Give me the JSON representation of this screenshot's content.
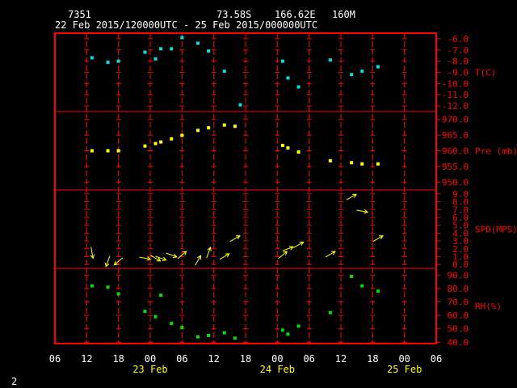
{
  "header": {
    "station_id": "7351",
    "lat": "73.58S",
    "lon": "166.62E",
    "elevation": "160M",
    "period": "22 Feb 2015/120000UTC - 25 Feb 2015/000000UTC"
  },
  "footer": {
    "page_number": "2"
  },
  "colors": {
    "frame": "#ff0000",
    "temperature": "#00e0e0",
    "pressure": "#ffff00",
    "wind": "#ffff00",
    "humidity": "#00e000",
    "text": "#ffffff"
  },
  "chart_data": {
    "type": "scatter",
    "x_tick_labels": [
      "06",
      "12",
      "18",
      "00",
      "06",
      "12",
      "18",
      "00",
      "06",
      "12",
      "18",
      "00",
      "06"
    ],
    "x_date_labels": [
      {
        "label": "23 Feb",
        "at_hour": 24
      },
      {
        "label": "24 Feb",
        "at_hour": 48
      },
      {
        "label": "25 Feb",
        "at_hour": 72
      }
    ],
    "x_range_hours": [
      6,
      78
    ],
    "x_hours_origin": "22 Feb 00UTC",
    "panels": [
      {
        "key": "temperature",
        "label": "T(C)",
        "ylim": [
          -12.5,
          -5.5
        ],
        "ticks": [
          "-6.0",
          "-7.0",
          "-8.0",
          "-9.0",
          "-10.0",
          "-11.0",
          "-12.0"
        ],
        "tick_values": [
          -6,
          -7,
          -8,
          -9,
          -10,
          -11,
          -12
        ],
        "points": [
          {
            "x": 13,
            "y": -7.7
          },
          {
            "x": 16,
            "y": -8.1
          },
          {
            "x": 18,
            "y": -8.0
          },
          {
            "x": 23,
            "y": -7.2
          },
          {
            "x": 25,
            "y": -7.8
          },
          {
            "x": 26,
            "y": -6.9
          },
          {
            "x": 28,
            "y": -6.9
          },
          {
            "x": 30,
            "y": -5.9
          },
          {
            "x": 33,
            "y": -6.4
          },
          {
            "x": 35,
            "y": -7.1
          },
          {
            "x": 38,
            "y": -8.9
          },
          {
            "x": 41,
            "y": -11.9
          },
          {
            "x": 49,
            "y": -8.0
          },
          {
            "x": 50,
            "y": -9.5
          },
          {
            "x": 52,
            "y": -10.3
          },
          {
            "x": 58,
            "y": -7.9
          },
          {
            "x": 62,
            "y": -9.2
          },
          {
            "x": 64,
            "y": -8.9
          },
          {
            "x": 67,
            "y": -8.5
          }
        ]
      },
      {
        "key": "pressure",
        "label": "Pre (mb)",
        "ylim": [
          947.5,
          972.5
        ],
        "ticks": [
          "970.0",
          "965.0",
          "960.0",
          "955.0",
          "950.0"
        ],
        "tick_values": [
          970,
          965,
          960,
          955,
          950
        ],
        "points": [
          {
            "x": 13,
            "y": 960.0
          },
          {
            "x": 16,
            "y": 960.0
          },
          {
            "x": 18,
            "y": 960.0
          },
          {
            "x": 23,
            "y": 961.5
          },
          {
            "x": 25,
            "y": 962.3
          },
          {
            "x": 26,
            "y": 962.8
          },
          {
            "x": 28,
            "y": 963.8
          },
          {
            "x": 30,
            "y": 964.9
          },
          {
            "x": 33,
            "y": 966.5
          },
          {
            "x": 35,
            "y": 967.3
          },
          {
            "x": 38,
            "y": 968.2
          },
          {
            "x": 40,
            "y": 967.8
          },
          {
            "x": 49,
            "y": 961.7
          },
          {
            "x": 50,
            "y": 960.9
          },
          {
            "x": 52,
            "y": 959.6
          },
          {
            "x": 58,
            "y": 956.8
          },
          {
            "x": 62,
            "y": 956.2
          },
          {
            "x": 64,
            "y": 955.8
          },
          {
            "x": 67,
            "y": 955.8
          }
        ]
      },
      {
        "key": "wind",
        "label": "SPD(MPS)",
        "ylim": [
          -0.5,
          9.5
        ],
        "ticks": [
          "9.0",
          "8.0",
          "7.0",
          "6.0",
          "5.0",
          "4.0",
          "3.0",
          "2.0",
          "1.0",
          "0.0"
        ],
        "tick_values": [
          9,
          8,
          7,
          6,
          5,
          4,
          3,
          2,
          1,
          0
        ],
        "points": [
          {
            "x": 13,
            "y": 1.5,
            "dir_deg": 350
          },
          {
            "x": 16,
            "y": 0.4,
            "dir_deg": 20
          },
          {
            "x": 18,
            "y": 0.4,
            "dir_deg": 50
          },
          {
            "x": 23,
            "y": 0.8,
            "dir_deg": 280
          },
          {
            "x": 25,
            "y": 0.8,
            "dir_deg": 300
          },
          {
            "x": 26,
            "y": 0.8,
            "dir_deg": 290
          },
          {
            "x": 28,
            "y": 1.2,
            "dir_deg": 290
          },
          {
            "x": 30,
            "y": 1.2,
            "dir_deg": 230
          },
          {
            "x": 33,
            "y": 0.5,
            "dir_deg": 210
          },
          {
            "x": 35,
            "y": 1.5,
            "dir_deg": 200
          },
          {
            "x": 38,
            "y": 1.0,
            "dir_deg": 240
          },
          {
            "x": 40,
            "y": 3.3,
            "dir_deg": 240
          },
          {
            "x": 49,
            "y": 1.2,
            "dir_deg": 230
          },
          {
            "x": 50,
            "y": 2.0,
            "dir_deg": 250
          },
          {
            "x": 52,
            "y": 2.5,
            "dir_deg": 240
          },
          {
            "x": 58,
            "y": 1.3,
            "dir_deg": 240
          },
          {
            "x": 62,
            "y": 8.6,
            "dir_deg": 240
          },
          {
            "x": 64,
            "y": 6.8,
            "dir_deg": 280
          },
          {
            "x": 67,
            "y": 3.3,
            "dir_deg": 240
          }
        ]
      },
      {
        "key": "humidity",
        "label": "RH(%)",
        "ylim": [
          39.0,
          95.0
        ],
        "ticks": [
          "90.0",
          "80.0",
          "70.0",
          "60.0",
          "50.0",
          "40.0"
        ],
        "tick_values": [
          90,
          80,
          70,
          60,
          50,
          40
        ],
        "points": [
          {
            "x": 13,
            "y": 82
          },
          {
            "x": 16,
            "y": 81
          },
          {
            "x": 18,
            "y": 76
          },
          {
            "x": 23,
            "y": 63
          },
          {
            "x": 25,
            "y": 59
          },
          {
            "x": 26,
            "y": 75
          },
          {
            "x": 28,
            "y": 54
          },
          {
            "x": 30,
            "y": 51
          },
          {
            "x": 33,
            "y": 44
          },
          {
            "x": 35,
            "y": 45
          },
          {
            "x": 38,
            "y": 47
          },
          {
            "x": 40,
            "y": 43
          },
          {
            "x": 49,
            "y": 49
          },
          {
            "x": 50,
            "y": 46
          },
          {
            "x": 52,
            "y": 52
          },
          {
            "x": 58,
            "y": 62
          },
          {
            "x": 62,
            "y": 89
          },
          {
            "x": 64,
            "y": 82
          },
          {
            "x": 67,
            "y": 78
          }
        ]
      }
    ]
  }
}
